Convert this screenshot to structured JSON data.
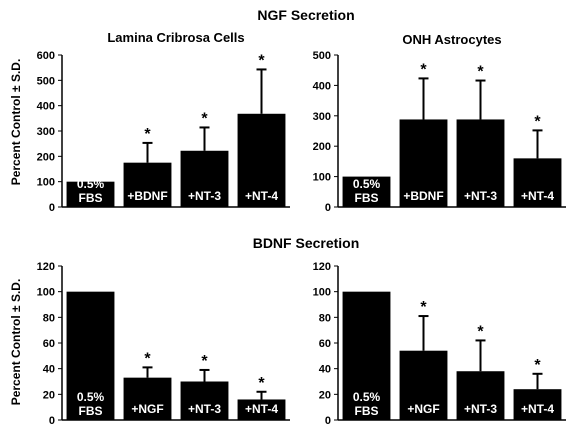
{
  "figure": {
    "top_heading": "NGF Secretion",
    "bottom_heading": "BDNF Secretion",
    "shared_ylabel": "Percent Control ± S.D."
  },
  "chart_data": [
    {
      "type": "bar",
      "title": "Lamina Cribrosa Cells",
      "ylabel": "Percent Control ± S.D.",
      "categories": [
        "0.5% FBS",
        "+BDNF",
        "+NT-3",
        "+NT-4"
      ],
      "values": [
        100,
        175,
        222,
        368
      ],
      "errors": [
        0,
        78,
        92,
        175
      ],
      "significant": [
        false,
        true,
        true,
        true
      ],
      "ylim": [
        0,
        600
      ],
      "yticks": [
        0,
        100,
        200,
        300,
        400,
        500,
        600
      ],
      "grid": false
    },
    {
      "type": "bar",
      "title": "ONH Astrocytes",
      "ylabel": "",
      "categories": [
        "0.5% FBS",
        "+BDNF",
        "+NT-3",
        "+NT-4"
      ],
      "values": [
        100,
        288,
        288,
        160
      ],
      "errors": [
        0,
        135,
        128,
        92
      ],
      "significant": [
        false,
        true,
        true,
        true
      ],
      "ylim": [
        0,
        500
      ],
      "yticks": [
        0,
        100,
        200,
        300,
        400,
        500
      ],
      "grid": false
    },
    {
      "type": "bar",
      "title": "",
      "ylabel": "Percent Control ± S.D.",
      "categories": [
        "0.5% FBS",
        "+NGF",
        "+NT-3",
        "+NT-4"
      ],
      "values": [
        100,
        33,
        30,
        16
      ],
      "errors": [
        0,
        8,
        9,
        6
      ],
      "significant": [
        false,
        true,
        true,
        true
      ],
      "ylim": [
        0,
        120
      ],
      "yticks": [
        0,
        20,
        40,
        60,
        80,
        100,
        120
      ],
      "grid": false
    },
    {
      "type": "bar",
      "title": "",
      "ylabel": "",
      "categories": [
        "0.5% FBS",
        "+NGF",
        "+NT-3",
        "+NT-4"
      ],
      "values": [
        100,
        54,
        38,
        24
      ],
      "errors": [
        0,
        27,
        24,
        12
      ],
      "significant": [
        false,
        true,
        true,
        true
      ],
      "ylim": [
        0,
        120
      ],
      "yticks": [
        0,
        20,
        40,
        60,
        80,
        100,
        120
      ],
      "grid": false
    }
  ]
}
